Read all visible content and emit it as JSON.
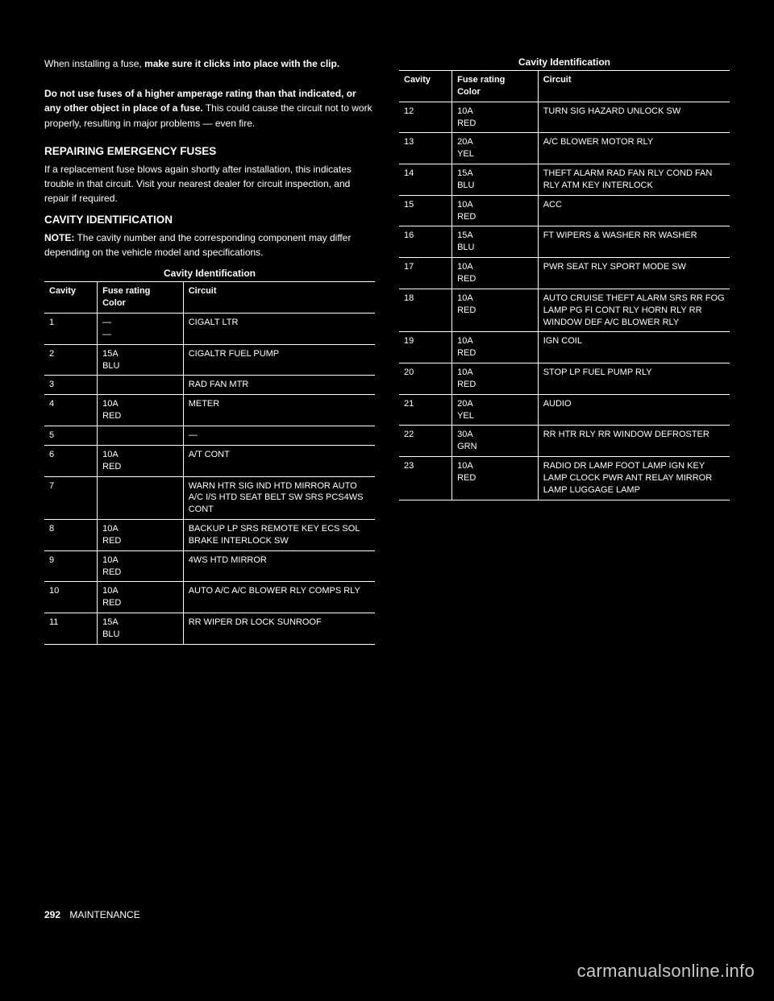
{
  "intro": {
    "line1_prefix": "When installing a fuse,",
    "line1_bold": " make sure it clicks into place with the clip.",
    "para2_bold_start": "Do not use fuses of a higher amperage rating than that indicated, or any other object in place of a fuse.",
    "para2_rest": " This could cause the circuit not to work properly, resulting in major problems — even fire.",
    "repairing_title": "REPAIRING EMERGENCY FUSES",
    "repairing_body": "If a replacement fuse blows again shortly after installation, this indicates trouble in that circuit. Visit your nearest",
    "repairing_rest": "dealer for circuit inspection, and repair if required."
  },
  "cavity_title": "CAVITY IDENTIFICATION",
  "note_label": "NOTE:",
  "note_body": "The cavity number and the corresponding component may differ depending on the vehicle model and specifications.",
  "table1": {
    "title": "Cavity Identification",
    "headers": [
      "Cavity",
      "Fuse rating",
      "Color",
      "Circuit"
    ],
    "rows": [
      [
        "1",
        "—",
        "—",
        "CIGALT LTR"
      ],
      [
        "2",
        "15A",
        "BLU",
        "CIGALTR FUEL PUMP"
      ],
      [
        "3",
        "",
        "",
        "RAD FAN MTR"
      ],
      [
        "4",
        "10A",
        "RED",
        "METER"
      ],
      [
        "5",
        "",
        "",
        "—"
      ],
      [
        "6",
        "10A",
        "RED",
        "A/T CONT"
      ],
      [
        "7",
        "",
        "",
        "WARN HTR SIG IND HTD MIRROR AUTO A/C I/S HTD SEAT BELT SW SRS PCS4WS CONT"
      ],
      [
        "8",
        "10A",
        "RED",
        "BACKUP LP SRS REMOTE KEY ECS SOL BRAKE INTERLOCK SW"
      ],
      [
        "9",
        "10A",
        "RED",
        "4WS HTD MIRROR"
      ],
      [
        "10",
        "10A",
        "RED",
        "AUTO A/C A/C BLOWER RLY COMPS RLY"
      ],
      [
        "11",
        "15A",
        "BLU",
        "RR WIPER DR LOCK SUNROOF"
      ]
    ]
  },
  "table2": {
    "rows": [
      [
        "12",
        "10A",
        "RED",
        "TURN SIG HAZARD UNLOCK SW"
      ],
      [
        "13",
        "20A",
        "YEL",
        "A/C BLOWER MOTOR RLY"
      ],
      [
        "14",
        "15A",
        "BLU",
        "THEFT ALARM RAD FAN RLY COND FAN RLY ATM KEY INTERLOCK"
      ],
      [
        "15",
        "10A",
        "RED",
        "ACC"
      ],
      [
        "16",
        "15A",
        "BLU",
        "FT WIPERS & WASHER RR WASHER"
      ],
      [
        "17",
        "10A",
        "RED",
        "PWR SEAT RLY SPORT MODE SW"
      ],
      [
        "18",
        "10A",
        "RED",
        "AUTO CRUISE THEFT ALARM SRS RR FOG LAMP PG FI CONT RLY HORN RLY RR WINDOW DEF A/C BLOWER RLY"
      ],
      [
        "19",
        "10A",
        "RED",
        "IGN COIL"
      ],
      [
        "20",
        "10A",
        "RED",
        "STOP LP FUEL PUMP RLY"
      ],
      [
        "21",
        "20A",
        "YEL",
        "AUDIO"
      ],
      [
        "22",
        "30A",
        "GRN",
        "RR HTR RLY RR WINDOW DEFROSTER"
      ],
      [
        "23",
        "10A",
        "RED",
        "RADIO DR LAMP FOOT LAMP IGN KEY LAMP CLOCK PWR ANT RELAY MIRROR LAMP LUGGAGE LAMP"
      ]
    ]
  },
  "footer": {
    "page_num": "292",
    "page_label": "MAINTENANCE"
  },
  "watermark": "carmanualsonline.info",
  "style": {
    "bg": "#000000",
    "fg": "#ffffff",
    "watermark_color": "#c8c8c8",
    "font_body": "12px",
    "font_table": "11px"
  }
}
